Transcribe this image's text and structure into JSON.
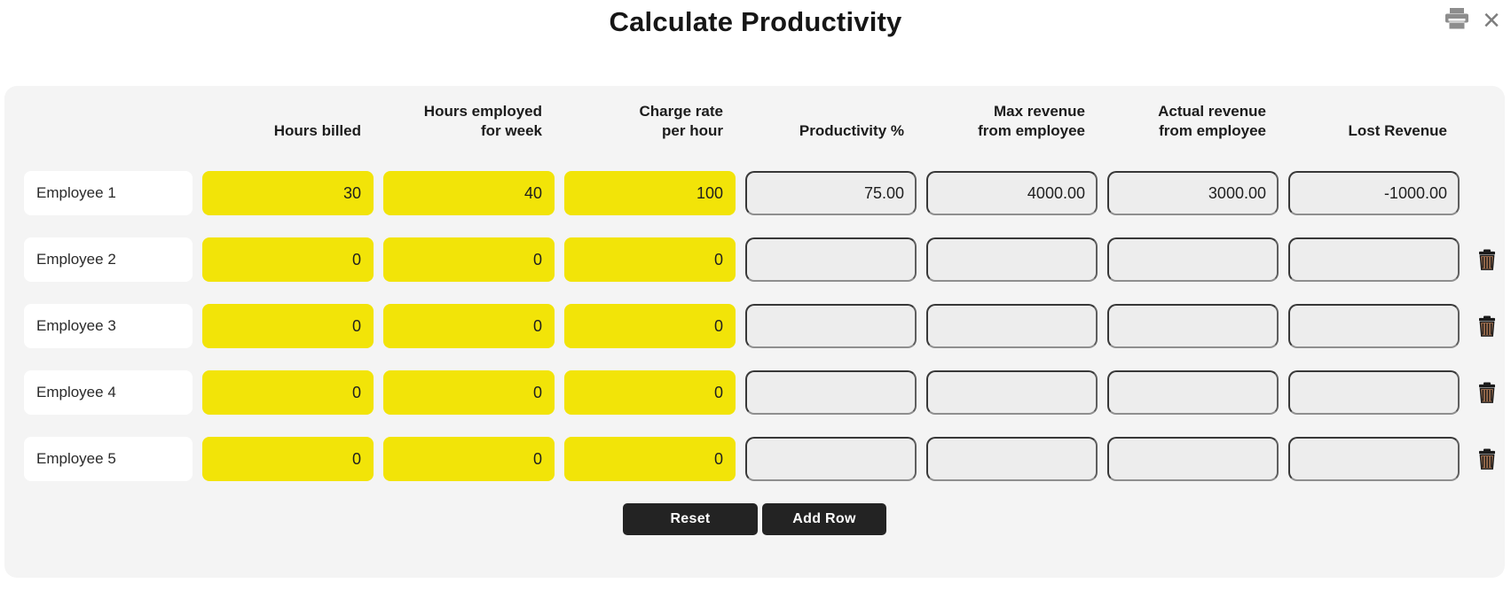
{
  "header": {
    "title": "Calculate Productivity"
  },
  "icons": {
    "close_glyph": "×"
  },
  "table": {
    "headers": [
      {
        "key": "hours-billed",
        "lines": [
          "Hours billed"
        ]
      },
      {
        "key": "hours-employed",
        "lines": [
          "Hours employed",
          "for week"
        ]
      },
      {
        "key": "charge-rate",
        "lines": [
          "Charge rate",
          "per hour"
        ]
      },
      {
        "key": "productivity",
        "lines": [
          "Productivity %"
        ]
      },
      {
        "key": "max-revenue",
        "lines": [
          "Max revenue",
          "from employee"
        ]
      },
      {
        "key": "actual-revenue",
        "lines": [
          "Actual revenue",
          "from employee"
        ]
      },
      {
        "key": "lost-revenue",
        "lines": [
          "Lost Revenue"
        ]
      }
    ],
    "rows": [
      {
        "label": "Employee 1",
        "hours_billed": "30",
        "hours_employed": "40",
        "charge_rate": "100",
        "productivity": "75.00",
        "max_revenue": "4000.00",
        "actual_revenue": "3000.00",
        "lost_revenue": "-1000.00",
        "has_delete": false
      },
      {
        "label": "Employee 2",
        "hours_billed": "0",
        "hours_employed": "0",
        "charge_rate": "0",
        "productivity": "",
        "max_revenue": "",
        "actual_revenue": "",
        "lost_revenue": "",
        "has_delete": true
      },
      {
        "label": "Employee 3",
        "hours_billed": "0",
        "hours_employed": "0",
        "charge_rate": "0",
        "productivity": "",
        "max_revenue": "",
        "actual_revenue": "",
        "lost_revenue": "",
        "has_delete": true
      },
      {
        "label": "Employee 4",
        "hours_billed": "0",
        "hours_employed": "0",
        "charge_rate": "0",
        "productivity": "",
        "max_revenue": "",
        "actual_revenue": "",
        "lost_revenue": "",
        "has_delete": true
      },
      {
        "label": "Employee 5",
        "hours_billed": "0",
        "hours_employed": "0",
        "charge_rate": "0",
        "productivity": "",
        "max_revenue": "",
        "actual_revenue": "",
        "lost_revenue": "",
        "has_delete": true
      }
    ]
  },
  "buttons": {
    "reset": "Reset",
    "add_row": "Add Row"
  },
  "colors": {
    "input_yellow": "#f2e408",
    "panel_bg": "#f4f4f4",
    "output_bg": "#ededed",
    "output_border": "#383838",
    "button_bg": "#232323",
    "icon_gray": "#8d8d8d"
  }
}
